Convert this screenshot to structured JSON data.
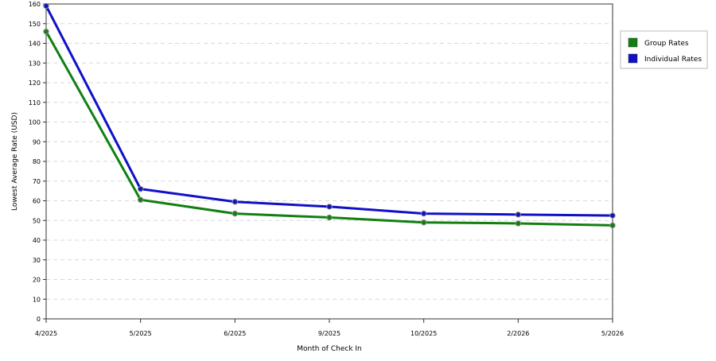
{
  "chart_data": {
    "type": "line",
    "title": "",
    "xlabel": "Month of Check In",
    "ylabel": "Lowest Average Rate (USD)",
    "categories": [
      "4/2025",
      "5/2025",
      "6/2025",
      "9/2025",
      "10/2025",
      "2/2026",
      "5/2026"
    ],
    "ylim": [
      0,
      160
    ],
    "yticks": [
      0,
      10,
      20,
      30,
      40,
      50,
      60,
      70,
      80,
      90,
      100,
      110,
      120,
      130,
      140,
      150,
      160
    ],
    "grid": true,
    "legend_position": "right",
    "series": [
      {
        "name": "Group Rates",
        "color": "#118011",
        "values": [
          146,
          60.5,
          53.5,
          51.5,
          49,
          48.5,
          47.5
        ]
      },
      {
        "name": "Individual Rates",
        "color": "#1010c8",
        "values": [
          159,
          66,
          59.5,
          57,
          53.5,
          53,
          52.5
        ]
      }
    ]
  }
}
